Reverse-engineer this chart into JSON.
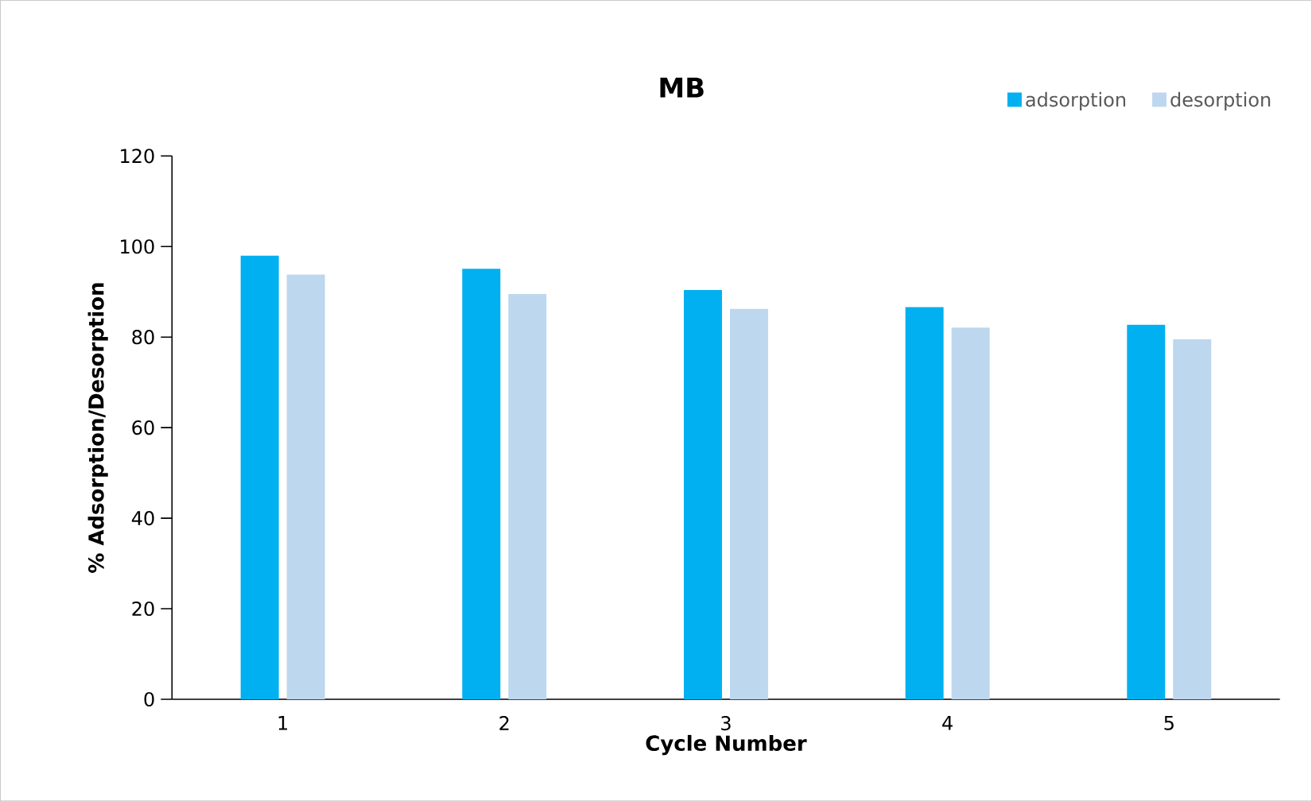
{
  "chart_data": {
    "type": "bar",
    "title": "MB",
    "xlabel": "Cycle Number",
    "ylabel": "% Adsorption/Desorption",
    "categories": [
      "1",
      "2",
      "3",
      "4",
      "5"
    ],
    "series": [
      {
        "name": "adsorption",
        "color": "#00b0f0",
        "values": [
          98.0,
          95.1,
          90.4,
          86.6,
          82.7
        ]
      },
      {
        "name": "desorption",
        "color": "#bdd7ee",
        "values": [
          93.8,
          89.5,
          86.2,
          82.1,
          79.5
        ]
      }
    ],
    "ylim": [
      0,
      120
    ],
    "yticks": [
      0,
      20,
      40,
      60,
      80,
      100,
      120
    ],
    "grid": false,
    "legend": "top right"
  }
}
